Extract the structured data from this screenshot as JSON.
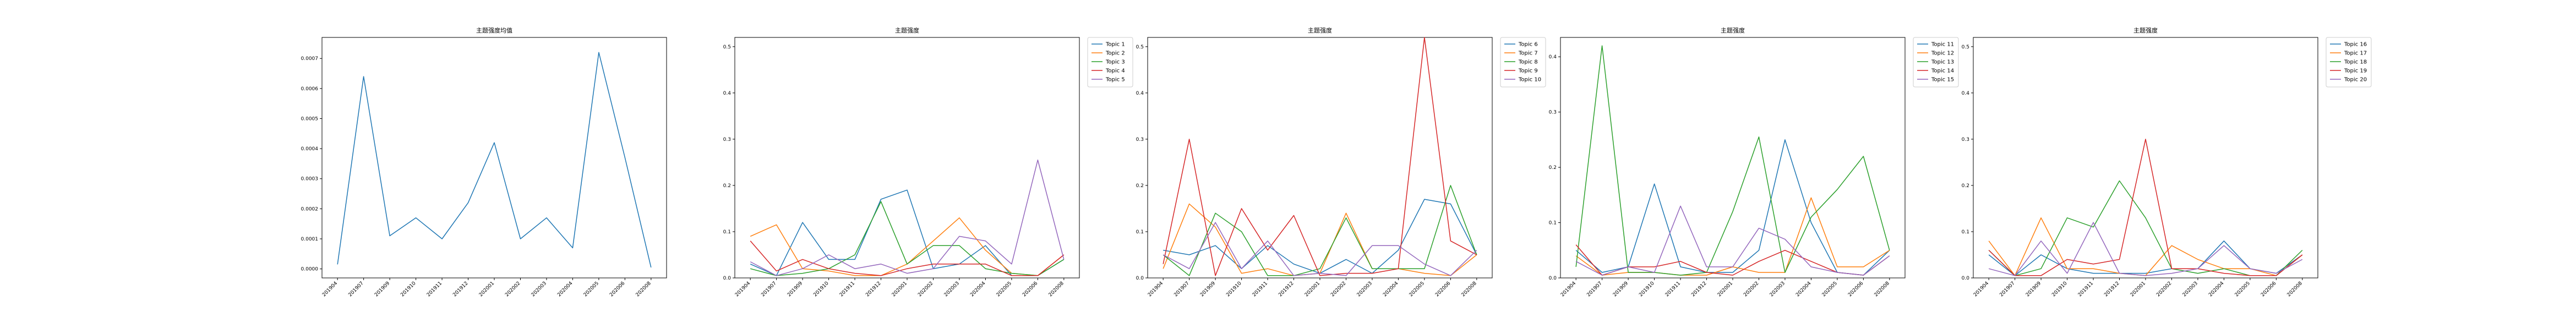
{
  "chart_data": [
    {
      "type": "line",
      "title": "主题强度均值",
      "xlabel": "",
      "ylabel": "",
      "categories": [
        "201904",
        "201907",
        "201909",
        "201910",
        "201911",
        "201912",
        "202001",
        "202002",
        "202003",
        "202004",
        "202005",
        "202006",
        "202008"
      ],
      "ylim": [
        -3e-05,
        0.00077
      ],
      "yticks": [
        "0.0000",
        "0.0001",
        "0.0002",
        "0.0003",
        "0.0004",
        "0.0005",
        "0.0006",
        "0.0007"
      ],
      "legend": "none",
      "grid": false,
      "series": [
        {
          "color": "#1f77b4",
          "values": [
            1.5e-05,
            0.00064,
            0.00011,
            0.00017,
            0.0001,
            0.00022,
            0.00042,
            0.0001,
            0.00017,
            7e-05,
            0.00072,
            0.00037,
            5e-06
          ]
        }
      ]
    },
    {
      "type": "line",
      "title": "主题强度",
      "categories": [
        "201904",
        "201907",
        "201909",
        "201910",
        "201911",
        "201912",
        "202001",
        "202002",
        "202003",
        "202004",
        "202005",
        "202006",
        "202008"
      ],
      "ylim": [
        0,
        0.52
      ],
      "yticks": [
        "0.0",
        "0.1",
        "0.2",
        "0.3",
        "0.4",
        "0.5"
      ],
      "legend": "outside-right",
      "grid": false,
      "series": [
        {
          "name": "Topic 1",
          "color": "#1f77b4",
          "values": [
            0.03,
            0.005,
            0.12,
            0.04,
            0.04,
            0.17,
            0.19,
            0.02,
            0.03,
            0.07,
            0.005,
            0.005,
            0.04
          ]
        },
        {
          "name": "Topic 2",
          "color": "#ff7f0e",
          "values": [
            0.09,
            0.115,
            0.02,
            0.015,
            0.005,
            0.005,
            0.03,
            0.08,
            0.13,
            0.06,
            0.01,
            0.005,
            0.05
          ]
        },
        {
          "name": "Topic 3",
          "color": "#2ca02c",
          "values": [
            0.02,
            0.005,
            0.01,
            0.02,
            0.05,
            0.165,
            0.03,
            0.07,
            0.07,
            0.02,
            0.01,
            0.005,
            0.04
          ]
        },
        {
          "name": "Topic 4",
          "color": "#d62728",
          "values": [
            0.08,
            0.015,
            0.04,
            0.02,
            0.01,
            0.005,
            0.02,
            0.03,
            0.03,
            0.03,
            0.005,
            0.005,
            0.05
          ]
        },
        {
          "name": "Topic 5",
          "color": "#9467bd",
          "values": [
            0.035,
            0.005,
            0.02,
            0.05,
            0.02,
            0.03,
            0.01,
            0.02,
            0.09,
            0.08,
            0.03,
            0.255,
            0.04
          ]
        }
      ]
    },
    {
      "type": "line",
      "title": "主题强度",
      "categories": [
        "201904",
        "201907",
        "201909",
        "201910",
        "201911",
        "201912",
        "202001",
        "202002",
        "202003",
        "202004",
        "202005",
        "202006",
        "202008"
      ],
      "ylim": [
        0,
        0.52
      ],
      "yticks": [
        "0.0",
        "0.1",
        "0.2",
        "0.3",
        "0.4",
        "0.5"
      ],
      "legend": "outside-right",
      "grid": false,
      "series": [
        {
          "name": "Topic 6",
          "color": "#1f77b4",
          "values": [
            0.06,
            0.05,
            0.07,
            0.02,
            0.07,
            0.03,
            0.01,
            0.04,
            0.01,
            0.06,
            0.17,
            0.16,
            0.05
          ]
        },
        {
          "name": "Topic 7",
          "color": "#ff7f0e",
          "values": [
            0.02,
            0.16,
            0.11,
            0.01,
            0.02,
            0.005,
            0.01,
            0.14,
            0.02,
            0.02,
            0.01,
            0.005,
            0.05
          ]
        },
        {
          "name": "Topic 8",
          "color": "#2ca02c",
          "values": [
            0.05,
            0.005,
            0.14,
            0.1,
            0.005,
            0.005,
            0.02,
            0.13,
            0.02,
            0.02,
            0.02,
            0.2,
            0.05
          ]
        },
        {
          "name": "Topic 9",
          "color": "#d62728",
          "values": [
            0.03,
            0.3,
            0.005,
            0.15,
            0.06,
            0.135,
            0.005,
            0.01,
            0.01,
            0.02,
            0.52,
            0.08,
            0.05
          ]
        },
        {
          "name": "Topic 10",
          "color": "#9467bd",
          "values": [
            0.05,
            0.02,
            0.12,
            0.02,
            0.08,
            0.005,
            0.01,
            0.005,
            0.07,
            0.07,
            0.03,
            0.005,
            0.06
          ]
        }
      ]
    },
    {
      "type": "line",
      "title": "主题强度",
      "categories": [
        "201904",
        "201907",
        "201909",
        "201910",
        "201911",
        "201912",
        "202001",
        "202002",
        "202003",
        "202004",
        "202005",
        "202006",
        "202008"
      ],
      "ylim": [
        0,
        0.435
      ],
      "yticks": [
        "0.0",
        "0.1",
        "0.2",
        "0.3",
        "0.4"
      ],
      "legend": "outside-right",
      "grid": false,
      "series": [
        {
          "name": "Topic 11",
          "color": "#1f77b4",
          "values": [
            0.05,
            0.01,
            0.02,
            0.17,
            0.02,
            0.01,
            0.01,
            0.05,
            0.25,
            0.1,
            0.01,
            0.005,
            0.05
          ]
        },
        {
          "name": "Topic 12",
          "color": "#ff7f0e",
          "values": [
            0.04,
            0.005,
            0.01,
            0.01,
            0.005,
            0.005,
            0.02,
            0.01,
            0.01,
            0.145,
            0.02,
            0.02,
            0.05
          ]
        },
        {
          "name": "Topic 13",
          "color": "#2ca02c",
          "values": [
            0.02,
            0.42,
            0.01,
            0.01,
            0.005,
            0.01,
            0.12,
            0.255,
            0.01,
            0.11,
            0.16,
            0.22,
            0.05
          ]
        },
        {
          "name": "Topic 14",
          "color": "#d62728",
          "values": [
            0.06,
            0.005,
            0.02,
            0.02,
            0.03,
            0.01,
            0.005,
            0.03,
            0.05,
            0.03,
            0.01,
            0.005,
            0.04
          ]
        },
        {
          "name": "Topic 15",
          "color": "#9467bd",
          "values": [
            0.03,
            0.005,
            0.02,
            0.01,
            0.13,
            0.02,
            0.02,
            0.09,
            0.07,
            0.02,
            0.01,
            0.005,
            0.04
          ]
        }
      ]
    },
    {
      "type": "line",
      "title": "主题强度",
      "categories": [
        "201904",
        "201907",
        "201909",
        "201910",
        "201911",
        "201912",
        "202001",
        "202002",
        "202003",
        "202004",
        "202005",
        "202006",
        "202008"
      ],
      "ylim": [
        0,
        0.52
      ],
      "yticks": [
        "0.0",
        "0.1",
        "0.2",
        "0.3",
        "0.4",
        "0.5"
      ],
      "legend": "outside-right",
      "grid": false,
      "series": [
        {
          "name": "Topic 16",
          "color": "#1f77b4",
          "values": [
            0.05,
            0.005,
            0.05,
            0.02,
            0.01,
            0.01,
            0.01,
            0.02,
            0.02,
            0.08,
            0.02,
            0.01,
            0.05
          ]
        },
        {
          "name": "Topic 17",
          "color": "#ff7f0e",
          "values": [
            0.08,
            0.005,
            0.13,
            0.02,
            0.02,
            0.01,
            0.005,
            0.07,
            0.04,
            0.02,
            0.02,
            0.005,
            0.05
          ]
        },
        {
          "name": "Topic 18",
          "color": "#2ca02c",
          "values": [
            0.06,
            0.005,
            0.02,
            0.13,
            0.11,
            0.21,
            0.13,
            0.02,
            0.01,
            0.02,
            0.005,
            0.005,
            0.06
          ]
        },
        {
          "name": "Topic 19",
          "color": "#d62728",
          "values": [
            0.06,
            0.005,
            0.005,
            0.04,
            0.03,
            0.04,
            0.3,
            0.02,
            0.02,
            0.01,
            0.005,
            0.005,
            0.05
          ]
        },
        {
          "name": "Topic 20",
          "color": "#9467bd",
          "values": [
            0.02,
            0.005,
            0.08,
            0.01,
            0.12,
            0.01,
            0.005,
            0.01,
            0.02,
            0.07,
            0.02,
            0.01,
            0.04
          ]
        }
      ]
    }
  ]
}
